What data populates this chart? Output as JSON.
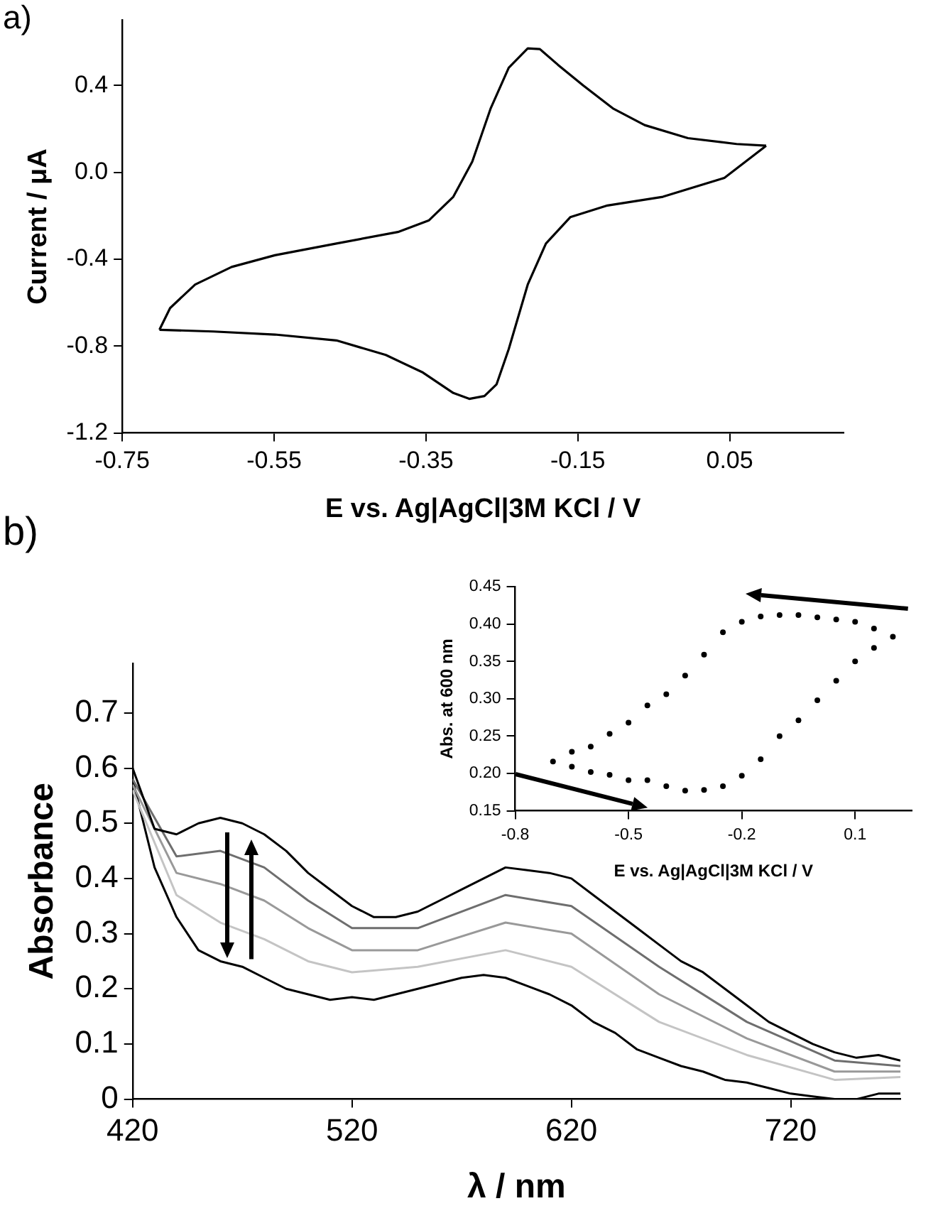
{
  "chart_data": [
    {
      "type": "line",
      "annotations": [
        "a)"
      ],
      "xlabel": "E vs. Ag|AgCl|3M KCl / V",
      "ylabel": "Current / μA",
      "xlim": [
        -0.75,
        0.2
      ],
      "ylim": [
        -1.2,
        0.7
      ],
      "xticks": [
        -0.75,
        -0.55,
        -0.35,
        -0.15,
        0.05
      ],
      "yticks": [
        -1.2,
        -0.8,
        -0.4,
        {
          "value": 0,
          "label": "0.0"
        },
        0.4
      ],
      "series": [
        {
          "color": "#000000",
          "x": [
            0.098,
            0.043,
            -0.038,
            -0.111,
            -0.16,
            -0.192,
            -0.216,
            -0.241,
            -0.257,
            -0.273,
            -0.293,
            -0.314,
            -0.354,
            -0.403,
            -0.468,
            -0.549,
            -0.63,
            -0.701
          ],
          "values": [
            0.122,
            -0.026,
            -0.113,
            -0.153,
            -0.207,
            -0.328,
            -0.517,
            -0.814,
            -0.976,
            -1.03,
            -1.043,
            -1.016,
            -0.922,
            -0.841,
            -0.774,
            -0.747,
            -0.733,
            -0.725
          ]
        },
        {
          "color": "#000000",
          "x": [
            -0.701,
            -0.687,
            -0.654,
            -0.606,
            -0.549,
            -0.468,
            -0.387,
            -0.346,
            -0.314,
            -0.289,
            -0.265,
            -0.241,
            -0.216,
            -0.2,
            -0.176,
            -0.143,
            -0.103,
            -0.062,
            -0.005,
            0.059,
            0.098
          ],
          "values": [
            -0.725,
            -0.625,
            -0.517,
            -0.436,
            -0.382,
            -0.328,
            -0.275,
            -0.221,
            -0.113,
            0.049,
            0.292,
            0.481,
            0.57,
            0.567,
            0.494,
            0.4,
            0.292,
            0.217,
            0.157,
            0.13,
            0.122
          ]
        }
      ]
    },
    {
      "type": "line",
      "annotations": [
        "b)"
      ],
      "xlabel": "λ / nm",
      "ylabel": "Absorbance",
      "xlim": [
        420,
        770
      ],
      "ylim": [
        0,
        0.79
      ],
      "xticks": [
        420,
        520,
        620,
        720
      ],
      "yticks": [
        0,
        0.1,
        0.2,
        0.3,
        0.4,
        0.5,
        0.6,
        0.7
      ],
      "series": [
        {
          "color": "#000000",
          "x": [
            420,
            430,
            440,
            450,
            460,
            470,
            480,
            490,
            500,
            510,
            520,
            530,
            540,
            550,
            560,
            570,
            580,
            590,
            600,
            610,
            620,
            630,
            640,
            650,
            660,
            670,
            680,
            690,
            700,
            710,
            720,
            730,
            740,
            750,
            760,
            770
          ],
          "values": [
            0.6,
            0.49,
            0.48,
            0.5,
            0.51,
            0.5,
            0.48,
            0.45,
            0.41,
            0.38,
            0.35,
            0.33,
            0.33,
            0.34,
            0.36,
            0.38,
            0.4,
            0.42,
            0.415,
            0.41,
            0.4,
            0.37,
            0.34,
            0.31,
            0.28,
            0.25,
            0.23,
            0.2,
            0.17,
            0.14,
            0.12,
            0.1,
            0.085,
            0.075,
            0.08,
            0.07
          ]
        },
        {
          "color": "#6e6e6e",
          "x": [
            420,
            440,
            460,
            480,
            500,
            520,
            550,
            590,
            620,
            660,
            700,
            740,
            770
          ],
          "values": [
            0.58,
            0.44,
            0.45,
            0.42,
            0.36,
            0.31,
            0.31,
            0.37,
            0.35,
            0.24,
            0.14,
            0.07,
            0.06
          ]
        },
        {
          "color": "#999999",
          "x": [
            420,
            440,
            460,
            480,
            500,
            520,
            550,
            590,
            620,
            660,
            700,
            740,
            770
          ],
          "values": [
            0.57,
            0.41,
            0.39,
            0.36,
            0.31,
            0.27,
            0.27,
            0.32,
            0.3,
            0.19,
            0.11,
            0.05,
            0.05
          ]
        },
        {
          "color": "#c4c4c4",
          "x": [
            420,
            440,
            460,
            480,
            500,
            520,
            550,
            590,
            620,
            660,
            700,
            740,
            770
          ],
          "values": [
            0.56,
            0.37,
            0.32,
            0.29,
            0.25,
            0.23,
            0.24,
            0.27,
            0.24,
            0.14,
            0.08,
            0.035,
            0.04
          ]
        },
        {
          "color": "#000000",
          "x": [
            420,
            430,
            440,
            450,
            460,
            470,
            480,
            490,
            500,
            510,
            520,
            530,
            540,
            550,
            560,
            570,
            580,
            590,
            600,
            610,
            620,
            630,
            640,
            650,
            660,
            670,
            680,
            690,
            700,
            710,
            720,
            730,
            740,
            750,
            760,
            770
          ],
          "values": [
            0.58,
            0.42,
            0.33,
            0.27,
            0.25,
            0.24,
            0.22,
            0.2,
            0.19,
            0.18,
            0.185,
            0.18,
            0.19,
            0.2,
            0.21,
            0.22,
            0.225,
            0.22,
            0.205,
            0.19,
            0.17,
            0.14,
            0.12,
            0.09,
            0.075,
            0.06,
            0.05,
            0.035,
            0.03,
            0.02,
            0.01,
            0.005,
            0,
            0,
            0.01,
            0.01
          ]
        }
      ]
    },
    {
      "type": "scatter",
      "xlabel": "E vs. Ag|AgCl|3M KCl / V",
      "ylabel": "Abs. at 600 nm",
      "xlim": [
        -0.8,
        0.25
      ],
      "ylim": [
        0.15,
        0.45
      ],
      "xticks": [
        -0.8,
        -0.5,
        -0.2,
        0.1
      ],
      "yticks": [
        0.15,
        {
          "value": 0.2,
          "label": "0.20"
        },
        0.25,
        {
          "value": 0.3,
          "label": "0.30"
        },
        0.35,
        {
          "value": 0.4,
          "label": "0.40"
        },
        0.45
      ],
      "marker": "circle",
      "color": "#000000",
      "x": [
        0.2,
        0.15,
        0.1,
        0.05,
        0,
        -0.05,
        -0.1,
        -0.15,
        -0.2,
        -0.25,
        -0.3,
        -0.35,
        -0.4,
        -0.45,
        -0.5,
        -0.55,
        -0.6,
        -0.65,
        -0.7,
        -0.65,
        -0.6,
        -0.55,
        -0.5,
        -0.45,
        -0.4,
        -0.35,
        -0.3,
        -0.25,
        -0.2,
        -0.15,
        -0.1,
        -0.05,
        0,
        0.05,
        0.1,
        0.15
      ],
      "values": [
        0.383,
        0.394,
        0.403,
        0.406,
        0.409,
        0.412,
        0.412,
        0.41,
        0.403,
        0.389,
        0.359,
        0.331,
        0.306,
        0.291,
        0.268,
        0.253,
        0.236,
        0.229,
        0.216,
        0.209,
        0.202,
        0.198,
        0.191,
        0.191,
        0.183,
        0.177,
        0.178,
        0.183,
        0.197,
        0.219,
        0.25,
        0.271,
        0.298,
        0.324,
        0.35,
        0.368
      ]
    }
  ]
}
